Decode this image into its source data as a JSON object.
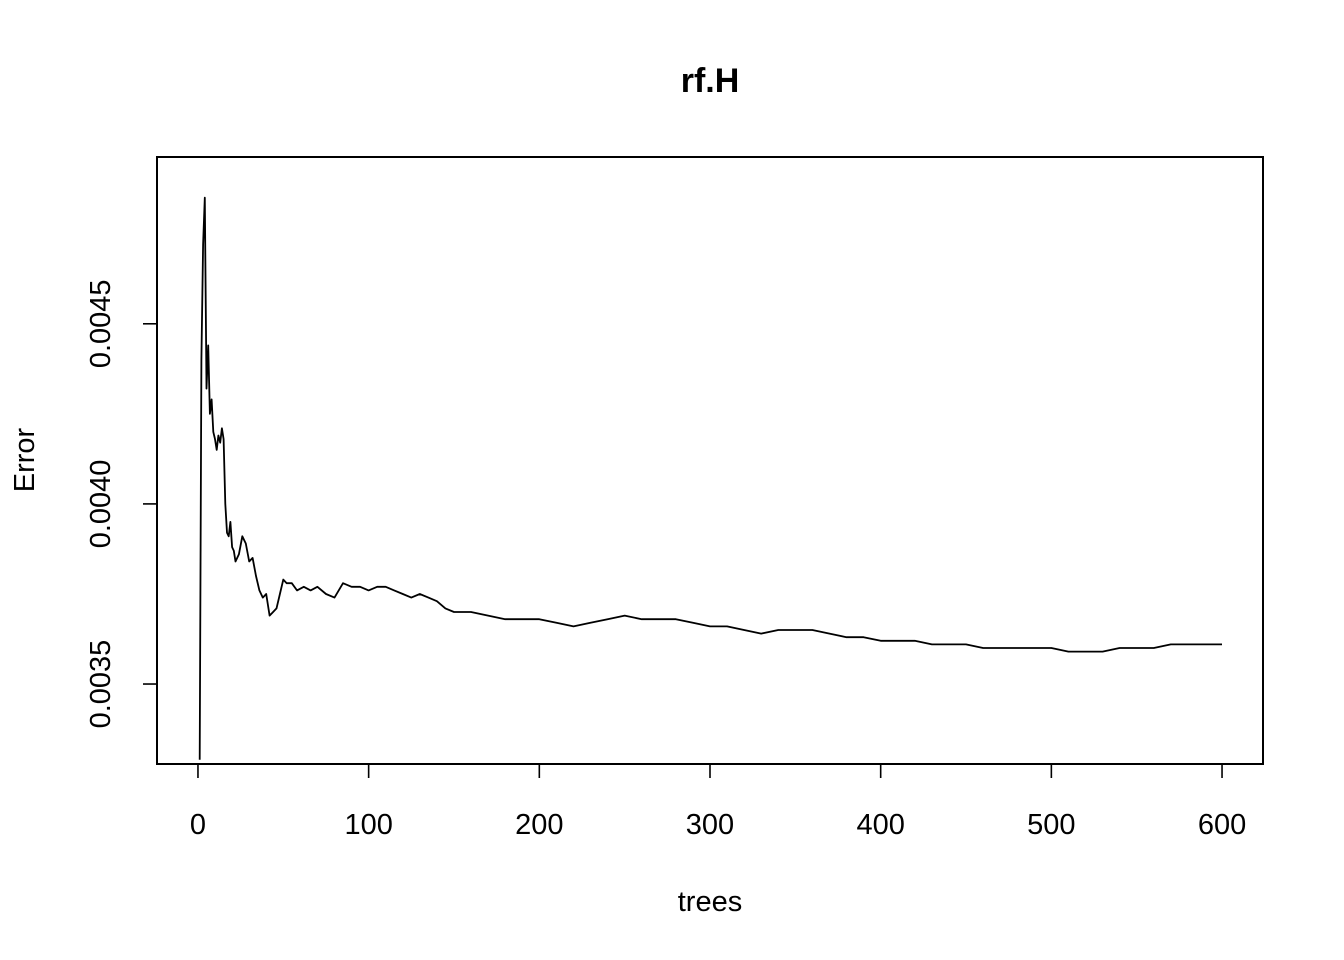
{
  "chart_data": {
    "type": "line",
    "title": "rf.H",
    "xlabel": "trees",
    "ylabel": "Error",
    "xlim": [
      -24,
      624
    ],
    "ylim": [
      0.003278,
      0.004963
    ],
    "x_ticks": [
      0,
      100,
      200,
      300,
      400,
      500,
      600
    ],
    "x_tick_labels": [
      "0",
      "100",
      "200",
      "300",
      "400",
      "500",
      "600"
    ],
    "y_ticks": [
      0.0035,
      0.004,
      0.0045
    ],
    "y_tick_labels": [
      "0.0035",
      "0.0040",
      "0.0045"
    ],
    "grid": false,
    "legend": "none",
    "series": [
      {
        "x": [
          1,
          2,
          3,
          4,
          5,
          6,
          7,
          8,
          9,
          10,
          11,
          12,
          13,
          14,
          15,
          16,
          17,
          18,
          19,
          20,
          21,
          22,
          24,
          26,
          28,
          30,
          32,
          34,
          36,
          38,
          40,
          42,
          44,
          46,
          48,
          50,
          52,
          55,
          58,
          62,
          66,
          70,
          75,
          80,
          85,
          90,
          95,
          100,
          105,
          110,
          115,
          120,
          125,
          130,
          135,
          140,
          145,
          150,
          160,
          170,
          180,
          190,
          200,
          210,
          220,
          230,
          240,
          250,
          260,
          270,
          280,
          290,
          300,
          310,
          320,
          330,
          340,
          350,
          360,
          370,
          380,
          390,
          400,
          410,
          420,
          430,
          440,
          450,
          460,
          470,
          480,
          490,
          500,
          510,
          520,
          530,
          540,
          550,
          560,
          570,
          580,
          590,
          600
        ],
        "y": [
          0.00329,
          0.0044,
          0.00472,
          0.00485,
          0.00432,
          0.00444,
          0.00425,
          0.00429,
          0.0042,
          0.00418,
          0.00415,
          0.00419,
          0.00417,
          0.00421,
          0.00418,
          0.004,
          0.00392,
          0.00391,
          0.00395,
          0.00388,
          0.00387,
          0.00384,
          0.00386,
          0.00391,
          0.00389,
          0.00384,
          0.00385,
          0.0038,
          0.00376,
          0.00374,
          0.00375,
          0.00369,
          0.0037,
          0.00371,
          0.00375,
          0.00379,
          0.00378,
          0.00378,
          0.00376,
          0.00377,
          0.00376,
          0.00377,
          0.00375,
          0.00374,
          0.00378,
          0.00377,
          0.00377,
          0.00376,
          0.00377,
          0.00377,
          0.00376,
          0.00375,
          0.00374,
          0.00375,
          0.00374,
          0.00373,
          0.00371,
          0.0037,
          0.0037,
          0.00369,
          0.00368,
          0.00368,
          0.00368,
          0.00367,
          0.00366,
          0.00367,
          0.00368,
          0.00369,
          0.00368,
          0.00368,
          0.00368,
          0.00367,
          0.00366,
          0.00366,
          0.00365,
          0.00364,
          0.00365,
          0.00365,
          0.00365,
          0.00364,
          0.00363,
          0.00363,
          0.00362,
          0.00362,
          0.00362,
          0.00361,
          0.00361,
          0.00361,
          0.0036,
          0.0036,
          0.0036,
          0.0036,
          0.0036,
          0.00359,
          0.00359,
          0.00359,
          0.0036,
          0.0036,
          0.0036,
          0.00361,
          0.00361,
          0.00361,
          0.00361
        ]
      }
    ]
  }
}
